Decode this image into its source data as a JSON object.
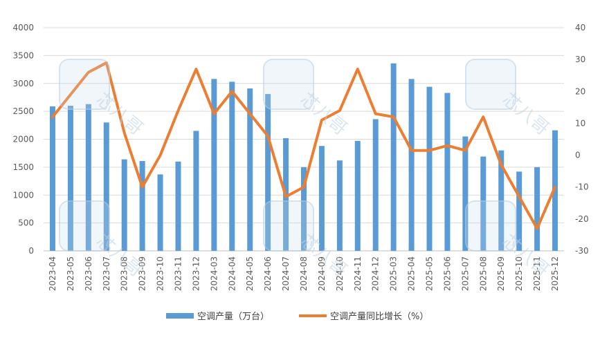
{
  "chart_data": {
    "type": "bar+line",
    "categories": [
      "2023-04",
      "2023-05",
      "2023-06",
      "2023-07",
      "2023-08",
      "2023-09",
      "2023-10",
      "2023-11",
      "2023-12",
      "2024-03",
      "2024-04",
      "2024-05",
      "2024-06",
      "2024-07",
      "2024-08",
      "2024-09",
      "2024-10",
      "2024-11",
      "2024-12",
      "2025-03",
      "2025-04",
      "2025-05",
      "2025-06",
      "2025-07",
      "2025-08",
      "2025-09",
      "2025-10",
      "2025-11",
      "2025-12"
    ],
    "series": [
      {
        "name": "空调产量（万台）",
        "type": "bar",
        "axis": "left",
        "color": "#5B9BD5",
        "values": [
          2590,
          2600,
          2630,
          2300,
          1640,
          1610,
          1370,
          1600,
          2150,
          3080,
          3030,
          2910,
          2810,
          2020,
          1500,
          1880,
          1620,
          1970,
          2360,
          3360,
          3080,
          2940,
          2830,
          2050,
          1690,
          1800,
          1420,
          1500,
          2160
        ]
      },
      {
        "name": "空调产量同比增长（%）",
        "type": "line",
        "axis": "right",
        "color": "#ED7D31",
        "values": [
          12,
          19,
          26,
          29,
          7,
          -10,
          0,
          14,
          27,
          13,
          20,
          13,
          6,
          -13,
          -10,
          11,
          14,
          27,
          13,
          12,
          1.5,
          1.5,
          3,
          1.5,
          12,
          -3,
          -13,
          -23,
          -10
        ]
      }
    ],
    "y_left": {
      "min": 0,
      "max": 4000,
      "step": 500,
      "ticks": [
        "0",
        "500",
        "1000",
        "1500",
        "2000",
        "2500",
        "3000",
        "3500",
        "4000"
      ]
    },
    "y_right": {
      "min": -30,
      "max": 40,
      "step": 10,
      "ticks": [
        "-30",
        "-20",
        "-10",
        "0",
        "10",
        "20",
        "30",
        "40"
      ]
    },
    "legend_position": "bottom",
    "grid": true,
    "watermark_text": "芯八哥"
  }
}
